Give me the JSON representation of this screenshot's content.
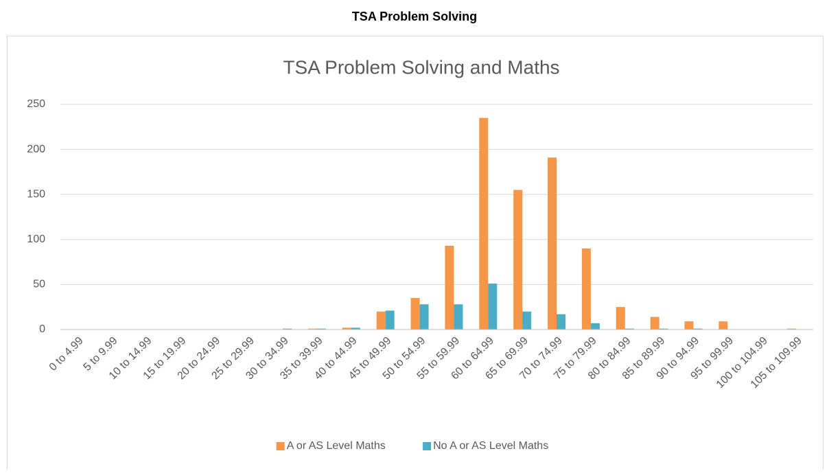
{
  "heading": "TSA Problem Solving",
  "chart_data": {
    "type": "bar",
    "title": "TSA Problem Solving and Maths",
    "categories": [
      "0 to 4.99",
      "5 to 9.99",
      "10 to 14.99",
      "15 to 19.99",
      "20 to 24.99",
      "25 to 29.99",
      "30 to 34.99",
      "35 to 39.99",
      "40 to 44.99",
      "45 to 49.99",
      "50 to 54.99",
      "55 to 59.99",
      "60 to 64.99",
      "65 to 69.99",
      "70 to 74.99",
      "75 to 79.99",
      "80 to 84.99",
      "85 to 89.99",
      "90 to 94.99",
      "95 to 99.99",
      "100 to 104.99",
      "105 to 109.99"
    ],
    "series": [
      {
        "name": "A or AS Level Maths",
        "color": "#f79646",
        "values": [
          0,
          0,
          0,
          0,
          0,
          0,
          0,
          1,
          2,
          20,
          35,
          93,
          235,
          155,
          191,
          90,
          25,
          14,
          9,
          9,
          0,
          1
        ]
      },
      {
        "name": "No A or AS Level Maths",
        "color": "#4bacc6",
        "values": [
          0,
          0,
          0,
          0,
          0,
          0,
          1,
          1,
          2,
          21,
          28,
          28,
          51,
          20,
          17,
          7,
          1,
          1,
          1,
          0,
          0,
          0
        ]
      }
    ],
    "ylim": [
      0,
      250
    ],
    "yticks": [
      0,
      50,
      100,
      150,
      200,
      250
    ],
    "grid": true,
    "legend": "bottom"
  }
}
